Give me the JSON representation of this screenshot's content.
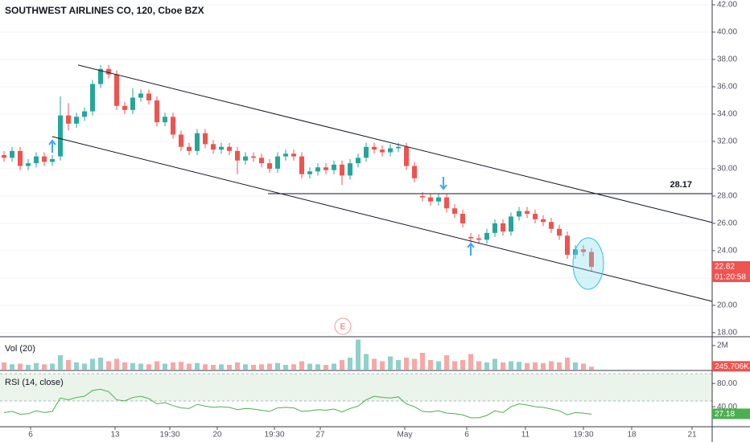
{
  "chart_data": [
    {
      "type": "candlestick",
      "title": "SOUTHWEST AIRLINES CO, 120, Cboe BZX",
      "up_color": "#26a69a",
      "down_color": "#ef5350",
      "grid": true,
      "xlim": [
        -0.5,
        88
      ],
      "ylim": [
        17.76,
        42.35
      ],
      "yticks": [
        {
          "value": 42,
          "label": "42.00"
        },
        {
          "value": 40,
          "label": "40.00"
        },
        {
          "value": 38,
          "label": "38.00"
        },
        {
          "value": 36,
          "label": "36.00"
        },
        {
          "value": 34,
          "label": "34.00"
        },
        {
          "value": 32,
          "label": "32.00"
        },
        {
          "value": 30,
          "label": "30.00"
        },
        {
          "value": 28,
          "label": "28.00"
        },
        {
          "value": 26,
          "label": "26.00"
        },
        {
          "value": 24,
          "label": "24.00"
        },
        {
          "value": 22,
          "label": "22.00"
        },
        {
          "value": 20,
          "label": "20.00"
        },
        {
          "value": 18,
          "label": "18.00"
        }
      ],
      "open": [
        31.0,
        30.8,
        31.3,
        30.2,
        30.4,
        30.9,
        30.5,
        30.9,
        33.9,
        33.3,
        33.8,
        34.2,
        36.2,
        37.3,
        36.9,
        34.6,
        34.3,
        35.2,
        35.5,
        35.0,
        33.4,
        33.8,
        32.5,
        31.6,
        31.3,
        32.6,
        31.8,
        31.4,
        31.6,
        31.3,
        30.6,
        30.9,
        30.8,
        30.4,
        30.0,
        30.9,
        31.1,
        30.9,
        29.6,
        29.8,
        30.1,
        29.9,
        30.3,
        29.5,
        30.4,
        30.8,
        31.6,
        31.4,
        31.2,
        31.5,
        31.6,
        30.2,
        28.0,
        27.9,
        27.6,
        27.9,
        27.1,
        26.7,
        25.0,
        24.9,
        24.8,
        25.3,
        26.0,
        25.4,
        26.5,
        26.9,
        26.7,
        26.3,
        26.1,
        25.6,
        25.1,
        23.7,
        24.1,
        23.9
      ],
      "high": [
        31.3,
        31.6,
        31.6,
        30.7,
        31.2,
        31.2,
        31.0,
        35.3,
        34.8,
        34.1,
        34.5,
        36.5,
        37.6,
        37.6,
        37.2,
        34.9,
        35.9,
        35.8,
        35.8,
        35.3,
        34.1,
        34.1,
        32.8,
        31.9,
        32.9,
        32.9,
        32.1,
        31.9,
        31.9,
        31.6,
        31.2,
        31.2,
        31.1,
        30.7,
        31.2,
        31.4,
        31.4,
        31.2,
        30.1,
        30.4,
        30.4,
        30.6,
        30.6,
        30.7,
        31.1,
        31.9,
        31.9,
        31.7,
        31.8,
        31.9,
        31.9,
        30.5,
        28.3,
        28.2,
        28.2,
        28.2,
        27.4,
        27.0,
        25.3,
        25.2,
        25.6,
        26.3,
        26.3,
        26.8,
        27.2,
        27.2,
        27.0,
        26.6,
        26.4,
        25.9,
        25.4,
        24.4,
        24.4,
        24.2
      ],
      "low": [
        30.5,
        30.5,
        29.9,
        29.9,
        30.1,
        30.2,
        30.2,
        30.6,
        32.8,
        33.0,
        33.5,
        33.9,
        35.9,
        36.6,
        34.3,
        34.0,
        34.0,
        34.9,
        34.7,
        33.1,
        33.1,
        32.2,
        31.3,
        31.0,
        31.0,
        31.5,
        31.1,
        31.1,
        31.0,
        29.6,
        30.3,
        30.5,
        30.1,
        29.7,
        29.7,
        30.6,
        30.6,
        29.3,
        29.3,
        29.5,
        29.6,
        29.6,
        28.8,
        29.2,
        30.1,
        30.5,
        31.1,
        30.9,
        30.9,
        31.2,
        29.9,
        29.0,
        27.6,
        27.3,
        27.3,
        26.8,
        26.4,
        25.7,
        24.6,
        24.5,
        24.5,
        25.0,
        25.1,
        25.1,
        26.2,
        26.4,
        26.0,
        25.8,
        25.3,
        24.8,
        23.4,
        23.4,
        23.6,
        22.5
      ],
      "close": [
        30.8,
        31.3,
        30.2,
        30.4,
        30.9,
        30.5,
        30.7,
        33.9,
        33.3,
        33.8,
        34.2,
        36.2,
        37.3,
        36.9,
        34.6,
        34.3,
        35.2,
        35.5,
        35.0,
        33.4,
        33.8,
        32.5,
        31.6,
        31.3,
        32.6,
        31.8,
        31.4,
        31.6,
        31.3,
        30.6,
        30.9,
        30.8,
        30.4,
        30.0,
        30.9,
        31.1,
        30.9,
        29.6,
        29.8,
        30.1,
        29.9,
        30.3,
        29.5,
        30.4,
        30.8,
        31.6,
        31.4,
        31.2,
        31.5,
        31.6,
        30.2,
        29.3,
        27.9,
        27.6,
        27.9,
        27.1,
        26.7,
        26.0,
        24.9,
        24.8,
        25.3,
        26.0,
        25.4,
        26.5,
        26.9,
        26.7,
        26.3,
        26.1,
        25.6,
        25.1,
        23.7,
        24.1,
        23.9,
        22.82
      ],
      "countdown": "01:20:58",
      "trendlines": [
        [
          [
            9.2,
            37.59
          ],
          [
            88,
            26.06
          ]
        ],
        [
          [
            6,
            32.35
          ],
          [
            88,
            20.29
          ]
        ]
      ],
      "level": {
        "value": 28.17,
        "start": 32.8
      }
    },
    {
      "type": "bar",
      "title": "Vol (20)",
      "up_color": "#8fd1c9",
      "down_color": "#f6a8a6",
      "xlim": [
        -0.5,
        88
      ],
      "ylim": [
        0,
        2670000
      ],
      "yticks": [
        {
          "value": 2000000,
          "label": "2M"
        }
      ],
      "values": [
        600000,
        450000,
        500000,
        400000,
        550000,
        450000,
        500000,
        1200000,
        800000,
        600000,
        500000,
        900000,
        1000000,
        700000,
        900000,
        600000,
        550000,
        500000,
        450000,
        700000,
        500000,
        600000,
        650000,
        500000,
        550000,
        450000,
        400000,
        450000,
        400000,
        600000,
        450000,
        400000,
        450000,
        500000,
        550000,
        400000,
        450000,
        700000,
        500000,
        450000,
        400000,
        500000,
        800000,
        1000000,
        2500000,
        1300000,
        900000,
        700000,
        1100000,
        800000,
        1000000,
        900000,
        1400000,
        800000,
        700000,
        1200000,
        700000,
        800000,
        1300000,
        700000,
        600000,
        900000,
        600000,
        700000,
        650000,
        550000,
        600000,
        550000,
        700000,
        600000,
        1000000,
        600000,
        500000,
        245706
      ],
      "last_value_label": "245.706K"
    },
    {
      "type": "line",
      "title": "RSI (14, close)",
      "color": "#4caf50",
      "xlim": [
        -0.5,
        88
      ],
      "ylim": [
        7,
        101
      ],
      "yticks": [
        {
          "value": 80,
          "label": "80.00"
        },
        {
          "value": 40,
          "label": "40.00"
        }
      ],
      "values": [
        30,
        32,
        27,
        28,
        33,
        30,
        32,
        55,
        52,
        56,
        58,
        68,
        70,
        66,
        52,
        50,
        56,
        58,
        54,
        45,
        47,
        42,
        38,
        37,
        44,
        41,
        39,
        40,
        39,
        35,
        37,
        36,
        34,
        32,
        38,
        39,
        38,
        32,
        33,
        35,
        34,
        36,
        31,
        37,
        41,
        52,
        58,
        56,
        55,
        57,
        45,
        40,
        32,
        31,
        33,
        29,
        28,
        26,
        21,
        21,
        25,
        33,
        30,
        40,
        45,
        43,
        40,
        39,
        36,
        33,
        26,
        30,
        29,
        27.18
      ],
      "xticks": [
        {
          "value": 3.3,
          "label": "6"
        },
        {
          "value": 13.8,
          "label": "13"
        },
        {
          "value": 20.6,
          "label": "19:30"
        },
        {
          "value": 26.5,
          "label": "20"
        },
        {
          "value": 33.6,
          "label": "19:30"
        },
        {
          "value": 39.3,
          "label": "27"
        },
        {
          "value": 49.8,
          "label": "May"
        },
        {
          "value": 57.5,
          "label": "6"
        },
        {
          "value": 64.8,
          "label": "11"
        },
        {
          "value": 72,
          "label": "19:30"
        },
        {
          "value": 78,
          "label": "18"
        },
        {
          "value": 85.5,
          "label": "21"
        }
      ]
    }
  ]
}
